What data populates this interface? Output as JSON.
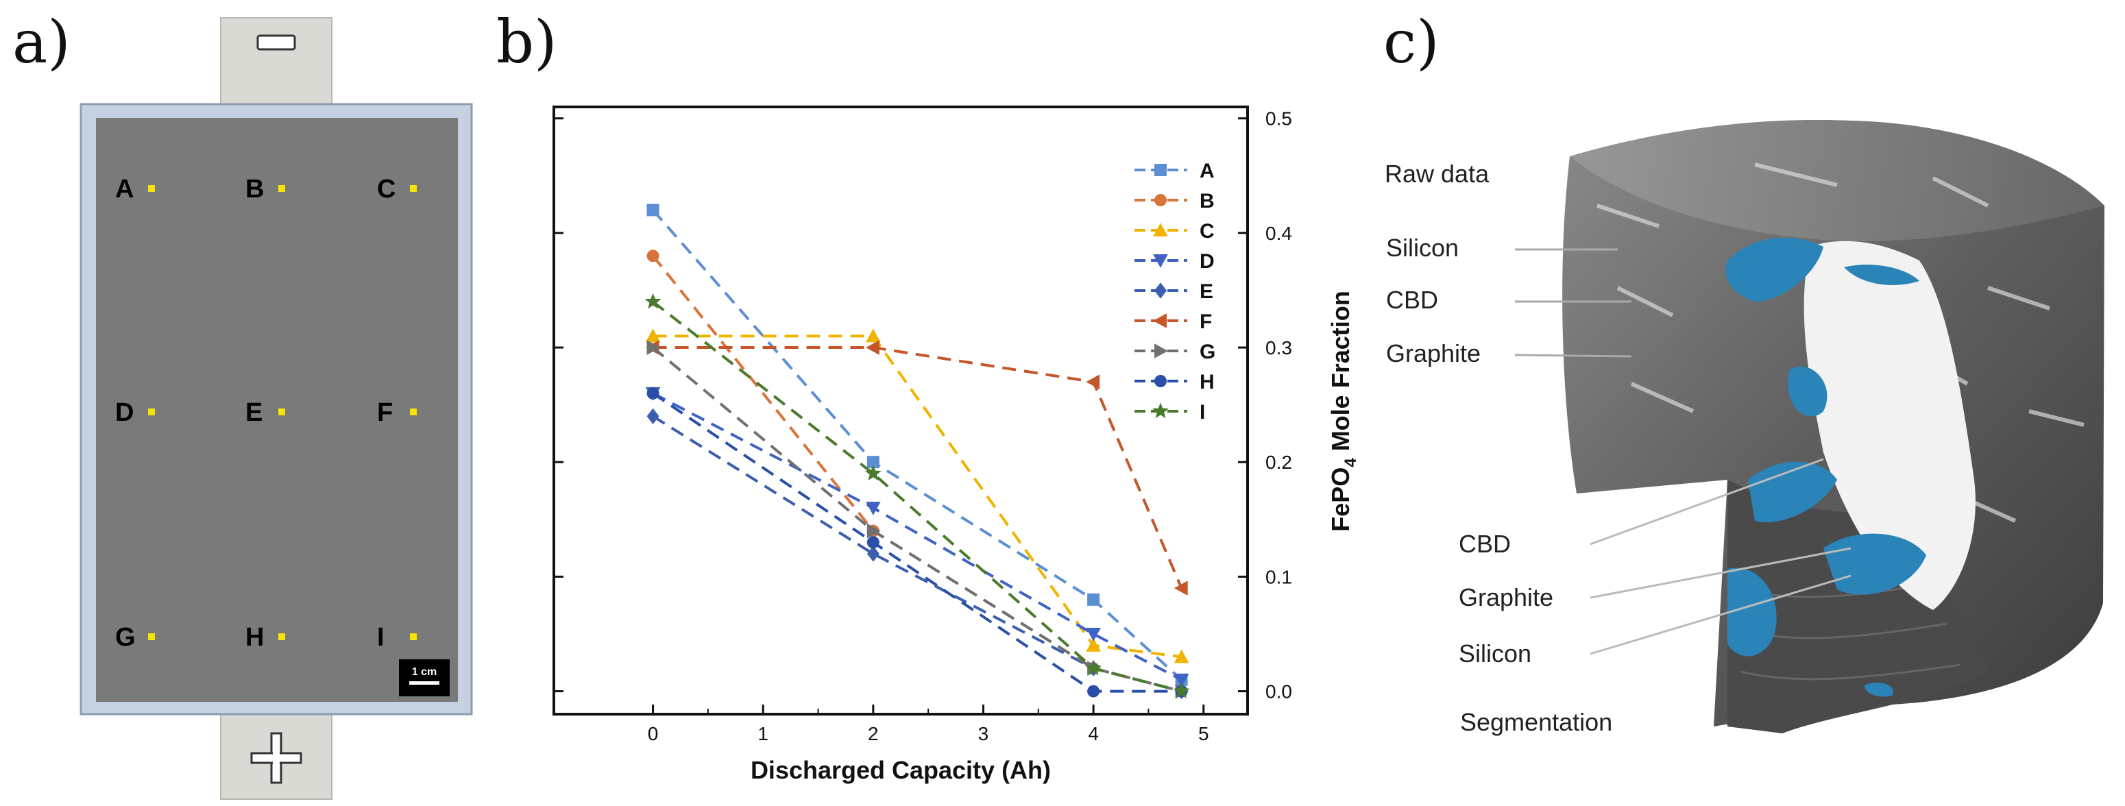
{
  "panels": {
    "a": {
      "label": "a)",
      "positions": [
        "A",
        "B",
        "C",
        "D",
        "E",
        "F",
        "G",
        "H",
        "I"
      ],
      "scale_bar": "1 cm",
      "terminals": {
        "negative": "−",
        "positive": "+"
      }
    },
    "b": {
      "label": "b)"
    },
    "c": {
      "label": "c)",
      "raw_data": "Raw data",
      "segmentation": "Segmentation",
      "upper_labels": [
        "Silicon",
        "CBD",
        "Graphite"
      ],
      "lower_labels": [
        "CBD",
        "Graphite",
        "Silicon"
      ]
    }
  },
  "chart_data": {
    "type": "line",
    "xlabel": "Discharged Capacity (Ah)",
    "ylabel_main": "FePO",
    "ylabel_sub": "4",
    "ylabel_rest": " Mole Fraction",
    "xlim": [
      -0.9,
      5.4
    ],
    "ylim": [
      -0.02,
      0.51
    ],
    "xticks": [
      "0",
      "1",
      "2",
      "3",
      "4",
      "5"
    ],
    "yticks": [
      "0.0",
      "0.1",
      "0.2",
      "0.3",
      "0.4",
      "0.5"
    ],
    "x": [
      0,
      2,
      4,
      4.8
    ],
    "series": [
      {
        "name": "A",
        "color": "#5b8fd4",
        "marker": "square",
        "values": [
          0.42,
          0.2,
          0.08,
          0.01
        ]
      },
      {
        "name": "B",
        "color": "#d9733a",
        "marker": "circle",
        "values": [
          0.38,
          0.14,
          0.02,
          0.0
        ]
      },
      {
        "name": "C",
        "color": "#f0b400",
        "marker": "triangle-up",
        "values": [
          0.31,
          0.31,
          0.04,
          0.03
        ]
      },
      {
        "name": "D",
        "color": "#3f62c4",
        "marker": "triangle-down",
        "values": [
          0.26,
          0.16,
          0.05,
          0.01
        ]
      },
      {
        "name": "E",
        "color": "#3b5fae",
        "marker": "diamond",
        "values": [
          0.24,
          0.12,
          0.02,
          0.0
        ]
      },
      {
        "name": "F",
        "color": "#c4562a",
        "marker": "triangle-left",
        "values": [
          0.3,
          0.3,
          0.27,
          0.09
        ]
      },
      {
        "name": "G",
        "color": "#707070",
        "marker": "triangle-right",
        "values": [
          0.3,
          0.14,
          0.02,
          0.0
        ]
      },
      {
        "name": "H",
        "color": "#2a4fa8",
        "marker": "circle",
        "values": [
          0.26,
          0.13,
          0.0,
          0.0
        ]
      },
      {
        "name": "I",
        "color": "#4a7a2c",
        "marker": "star",
        "values": [
          0.34,
          0.19,
          0.02,
          0.0
        ]
      }
    ]
  }
}
